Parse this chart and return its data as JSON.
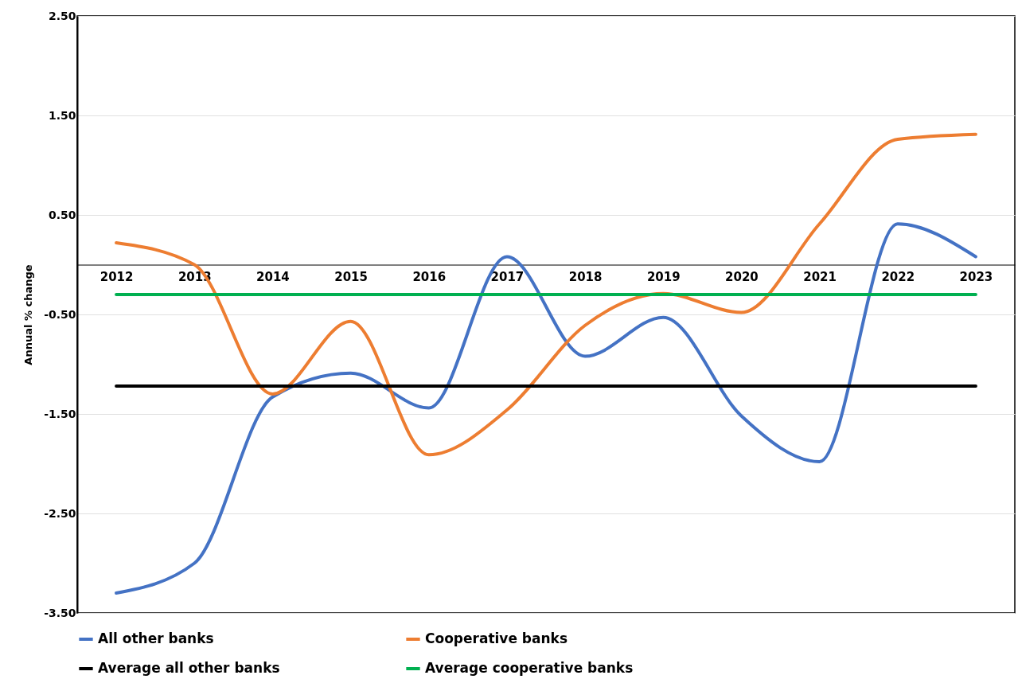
{
  "chart_data": {
    "type": "line",
    "ylabel": "Annual % change",
    "categories": [
      "2012",
      "2013",
      "2014",
      "2015",
      "2016",
      "2017",
      "2018",
      "2019",
      "2020",
      "2021",
      "2022",
      "2023"
    ],
    "series": [
      {
        "name": "All other banks",
        "color": "#4472c4",
        "values": [
          -3.3,
          -3.0,
          -1.33,
          -1.09,
          -1.44,
          0.08,
          -0.92,
          -0.53,
          -1.52,
          -1.98,
          0.41,
          0.08
        ]
      },
      {
        "name": "Cooperative banks",
        "color": "#ed7d31",
        "values": [
          0.22,
          0.0,
          -1.3,
          -0.57,
          -1.91,
          -1.46,
          -0.61,
          -0.29,
          -0.48,
          0.41,
          1.26,
          1.31
        ]
      },
      {
        "name": "Average all other banks",
        "color": "#000000",
        "values": [
          -1.22,
          -1.22,
          -1.22,
          -1.22,
          -1.22,
          -1.22,
          -1.22,
          -1.22,
          -1.22,
          -1.22,
          -1.22,
          -1.22
        ]
      },
      {
        "name": "Average cooperative banks",
        "color": "#00b050",
        "values": [
          -0.3,
          -0.3,
          -0.3,
          -0.3,
          -0.3,
          -0.3,
          -0.3,
          -0.3,
          -0.3,
          -0.3,
          -0.3,
          -0.3
        ]
      }
    ],
    "ylim": [
      -3.5,
      2.5
    ],
    "yticks": [
      {
        "value": -3.5,
        "label": "-3.50"
      },
      {
        "value": -2.5,
        "label": "-2.50"
      },
      {
        "value": -1.5,
        "label": "-1.50"
      },
      {
        "value": -0.5,
        "label": "-0.50"
      },
      {
        "value": 0.5,
        "label": "0.50"
      },
      {
        "value": 1.5,
        "label": "1.50"
      },
      {
        "value": 2.5,
        "label": "2.50"
      }
    ],
    "grid": "y",
    "legend": "bottom",
    "marker": "none",
    "line_style": "solid"
  }
}
